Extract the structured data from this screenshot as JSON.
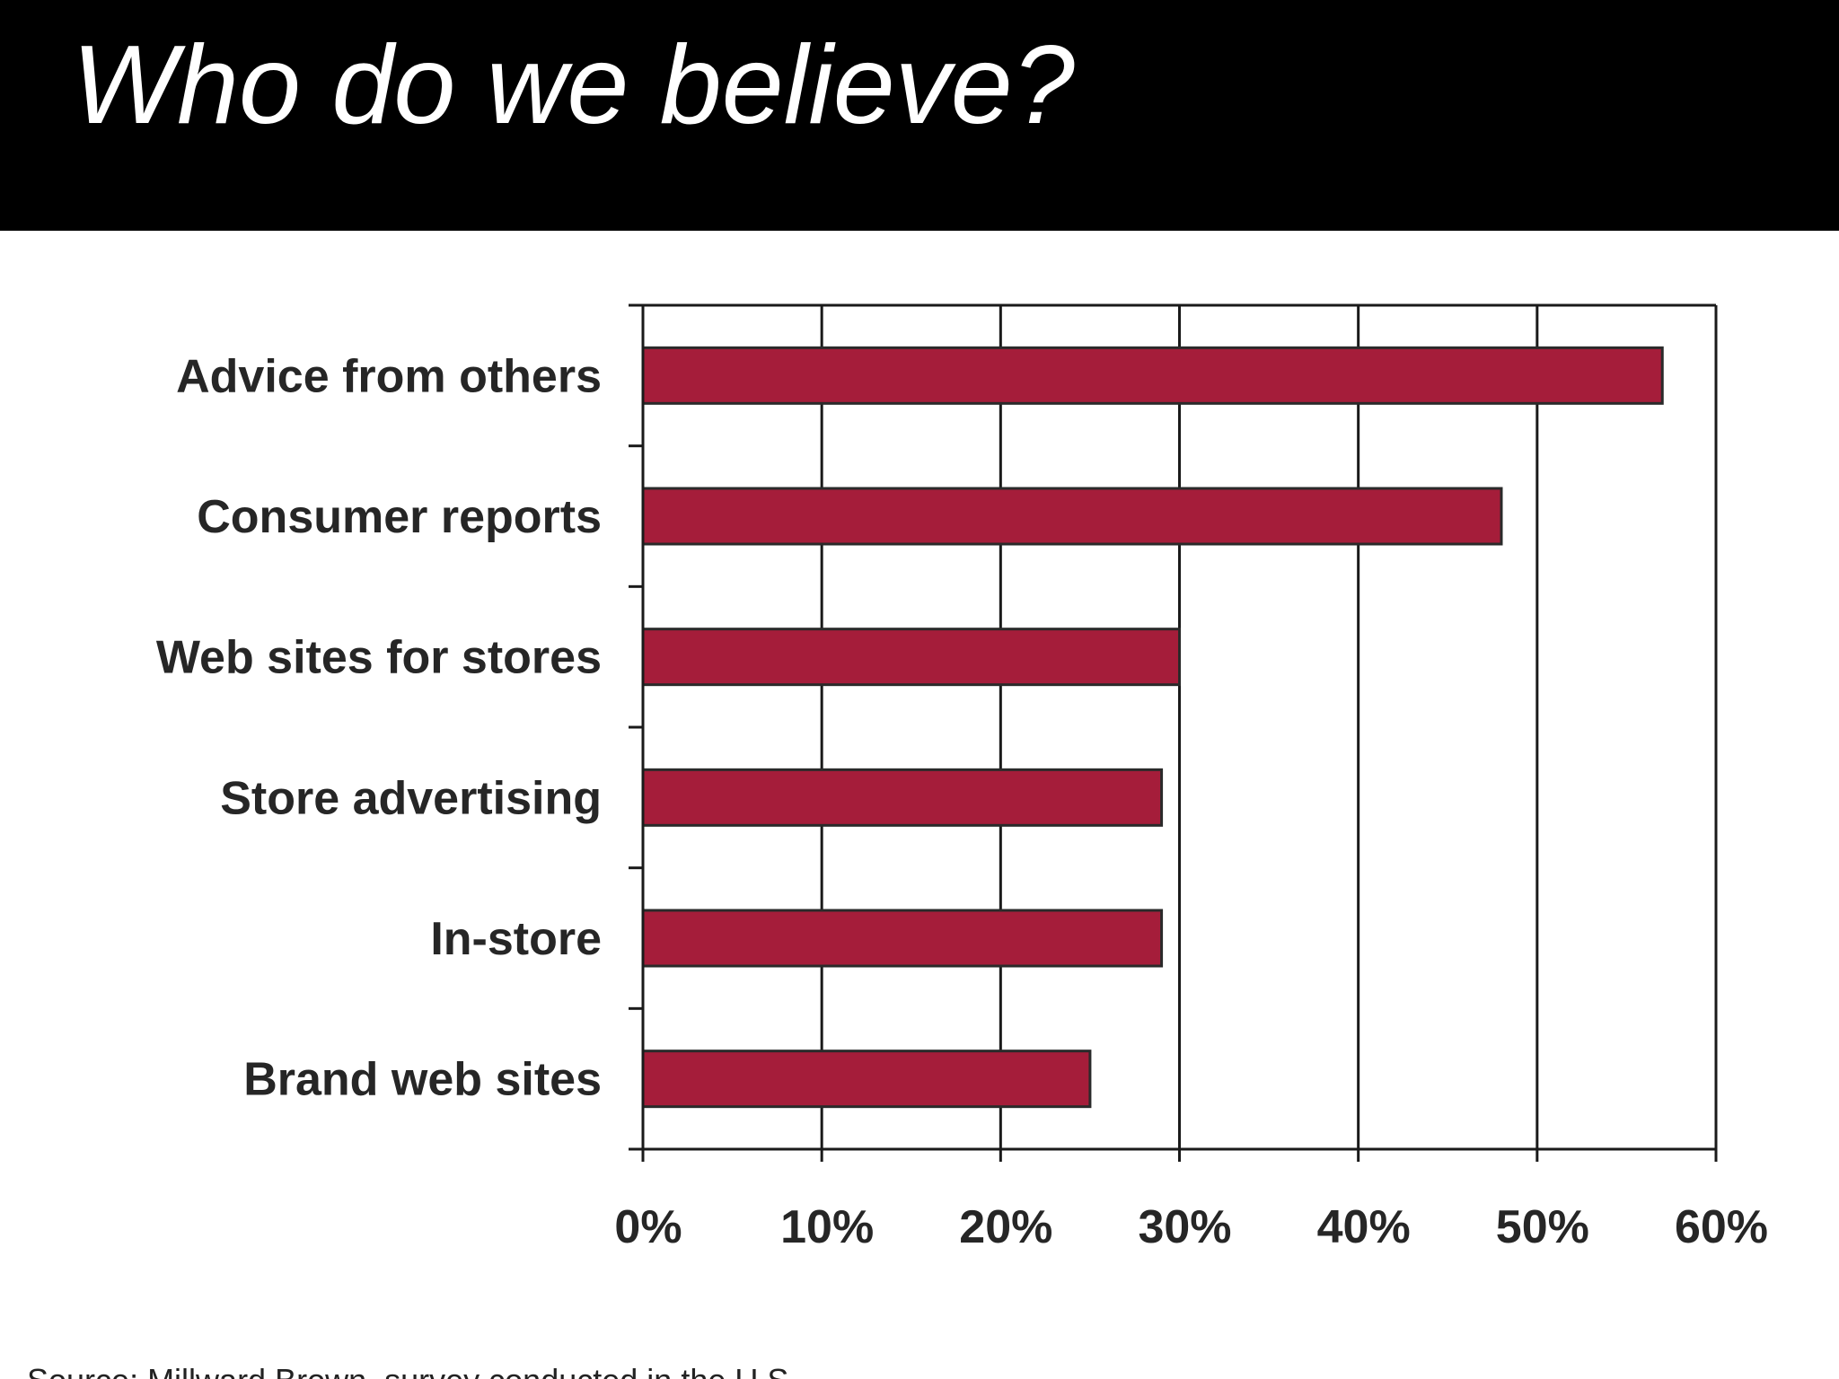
{
  "slide": {
    "title": "Who do we believe?",
    "source_note": "Source: Millward Brown, survey conducted in the U.S."
  },
  "colors": {
    "title_bar": "#000000",
    "bar_fill": "#a51d3a",
    "bar_stroke": "#2a2a2a",
    "grid": "#1a1a1a",
    "text": "#262626"
  },
  "chart_data": {
    "type": "bar",
    "orientation": "horizontal",
    "title": "",
    "xlabel": "",
    "ylabel": "",
    "categories": [
      "Advice from others",
      "Consumer reports",
      "Web sites for stores",
      "Store advertising",
      "In-store",
      "Brand web sites"
    ],
    "values": [
      57,
      48,
      30,
      29,
      29,
      25
    ],
    "value_unit": "%",
    "xlim": [
      0,
      60
    ],
    "x_ticks": [
      "0%",
      "10%",
      "20%",
      "30%",
      "40%",
      "50%",
      "60%"
    ],
    "x_tick_values": [
      0,
      10,
      20,
      30,
      40,
      50,
      60
    ],
    "grid": "vertical",
    "legend": "none"
  }
}
